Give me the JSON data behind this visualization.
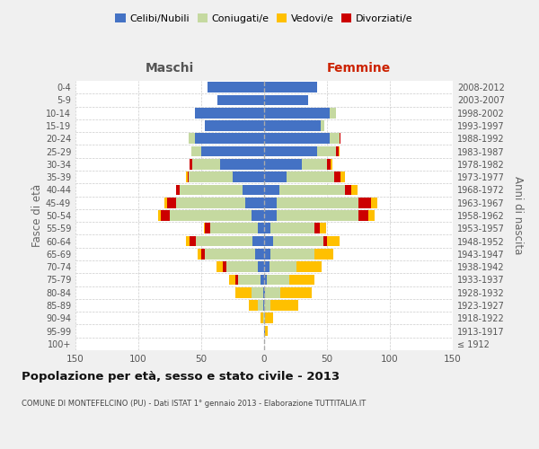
{
  "age_groups": [
    "100+",
    "95-99",
    "90-94",
    "85-89",
    "80-84",
    "75-79",
    "70-74",
    "65-69",
    "60-64",
    "55-59",
    "50-54",
    "45-49",
    "40-44",
    "35-39",
    "30-34",
    "25-29",
    "20-24",
    "15-19",
    "10-14",
    "5-9",
    "0-4"
  ],
  "year_ranges": [
    "≤ 1912",
    "1913-1917",
    "1918-1922",
    "1923-1927",
    "1928-1932",
    "1933-1937",
    "1938-1942",
    "1943-1947",
    "1948-1952",
    "1953-1957",
    "1958-1962",
    "1963-1967",
    "1968-1972",
    "1973-1977",
    "1978-1982",
    "1983-1987",
    "1988-1992",
    "1993-1997",
    "1998-2002",
    "2003-2007",
    "2008-2012"
  ],
  "maschi": {
    "celibi": [
      0,
      0,
      0,
      1,
      1,
      3,
      5,
      7,
      9,
      5,
      10,
      15,
      17,
      25,
      35,
      50,
      55,
      47,
      55,
      37,
      45
    ],
    "coniugati": [
      0,
      0,
      1,
      4,
      9,
      18,
      25,
      40,
      45,
      38,
      65,
      55,
      50,
      35,
      22,
      8,
      5,
      0,
      0,
      0,
      0
    ],
    "vedovi": [
      0,
      0,
      2,
      7,
      13,
      5,
      5,
      3,
      3,
      1,
      2,
      2,
      0,
      1,
      0,
      0,
      0,
      0,
      0,
      0,
      0
    ],
    "divorziati": [
      0,
      0,
      0,
      0,
      0,
      2,
      3,
      3,
      5,
      4,
      7,
      7,
      3,
      1,
      2,
      0,
      0,
      0,
      0,
      0,
      0
    ]
  },
  "femmine": {
    "nubili": [
      0,
      1,
      0,
      0,
      1,
      2,
      4,
      5,
      7,
      5,
      10,
      10,
      12,
      18,
      30,
      42,
      52,
      45,
      52,
      35,
      42
    ],
    "coniugate": [
      0,
      0,
      1,
      5,
      12,
      18,
      22,
      35,
      40,
      35,
      65,
      65,
      52,
      38,
      20,
      15,
      8,
      3,
      5,
      0,
      0
    ],
    "vedove": [
      0,
      2,
      6,
      22,
      25,
      20,
      20,
      15,
      10,
      5,
      5,
      5,
      5,
      3,
      1,
      1,
      0,
      0,
      0,
      0,
      0
    ],
    "divorziate": [
      0,
      0,
      0,
      0,
      0,
      0,
      0,
      0,
      3,
      4,
      8,
      10,
      5,
      5,
      3,
      2,
      1,
      0,
      0,
      0,
      0
    ]
  },
  "colors": {
    "celibi_nubili": "#4472c4",
    "coniugati": "#c5d9a0",
    "vedovi": "#ffc000",
    "divorziati": "#cc0000"
  },
  "xlim": 150,
  "title": "Popolazione per età, sesso e stato civile - 2013",
  "subtitle": "COMUNE DI MONTEFELCINO (PU) - Dati ISTAT 1° gennaio 2013 - Elaborazione TUTTITALIA.IT",
  "ylabel_left": "Fasce di età",
  "ylabel_right": "Anni di nascita",
  "label_maschi": "Maschi",
  "label_femmine": "Femmine",
  "bg_color": "#f0f0f0",
  "plot_bg_color": "#ffffff",
  "grid_color": "#cccccc",
  "legend_labels": [
    "Celibi/Nubili",
    "Coniugati/e",
    "Vedovi/e",
    "Divorziati/e"
  ]
}
